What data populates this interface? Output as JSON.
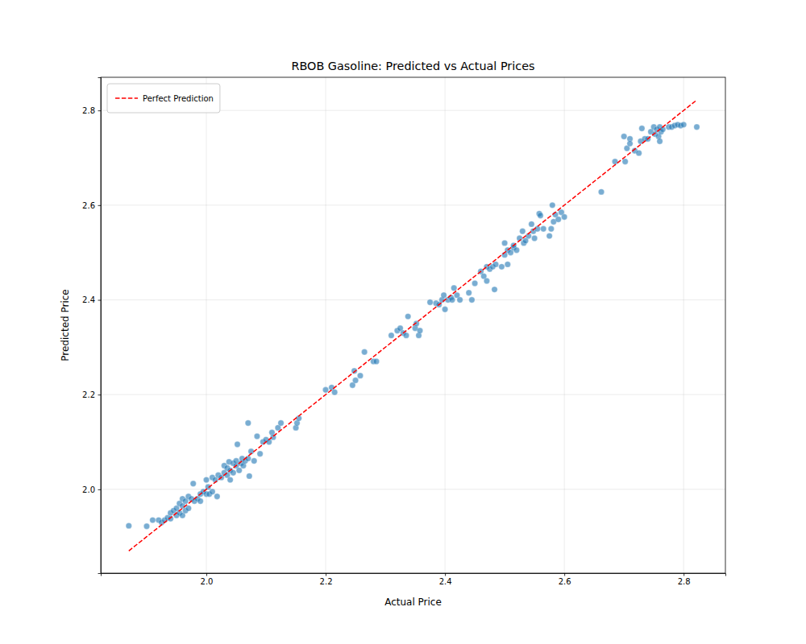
{
  "chart_data": {
    "type": "scatter",
    "title": "RBOB Gasoline: Predicted vs Actual Prices",
    "x_label": "Actual Price",
    "y_label": "Predicted Price",
    "xlim": [
      1.823,
      2.87
    ],
    "ylim": [
      1.823,
      2.87
    ],
    "xticks": [
      {
        "value": 2,
        "label": "2.0"
      },
      2.2,
      2.4,
      2.6,
      2.8
    ],
    "yticks": [
      {
        "value": 2,
        "label": "2.0"
      },
      2.2,
      2.4,
      2.6,
      2.8
    ],
    "grid": true,
    "legend": "upper left",
    "series": [
      {
        "type": "scatter",
        "color": "#1f77b4",
        "marker": "o",
        "x": [
          1.87,
          1.9,
          1.91,
          1.92,
          1.925,
          1.93,
          1.935,
          1.94,
          1.94,
          1.945,
          1.95,
          1.95,
          1.955,
          1.955,
          1.96,
          1.96,
          1.96,
          1.965,
          1.965,
          1.97,
          1.97,
          1.975,
          1.978,
          1.98,
          1.985,
          1.99,
          1.99,
          1.995,
          2.0,
          2.0,
          2.003,
          2.005,
          2.01,
          2.01,
          2.015,
          2.018,
          2.02,
          2.025,
          2.03,
          2.03,
          2.035,
          2.035,
          2.038,
          2.04,
          2.04,
          2.045,
          2.045,
          2.05,
          2.05,
          2.052,
          2.055,
          2.058,
          2.06,
          2.062,
          2.065,
          2.07,
          2.07,
          2.072,
          2.075,
          2.08,
          2.085,
          2.09,
          2.095,
          2.1,
          2.105,
          2.11,
          2.112,
          2.12,
          2.125,
          2.15,
          2.152,
          2.155,
          2.2,
          2.21,
          2.215,
          2.245,
          2.248,
          2.25,
          2.258,
          2.265,
          2.28,
          2.285,
          2.31,
          2.32,
          2.325,
          2.33,
          2.335,
          2.338,
          2.35,
          2.352,
          2.356,
          2.358,
          2.375,
          2.385,
          2.39,
          2.395,
          2.398,
          2.4,
          2.405,
          2.41,
          2.412,
          2.415,
          2.42,
          2.425,
          2.44,
          2.445,
          2.45,
          2.46,
          2.465,
          2.47,
          2.47,
          2.475,
          2.48,
          2.485,
          2.483,
          2.495,
          2.5,
          2.5,
          2.505,
          2.505,
          2.51,
          2.515,
          2.515,
          2.52,
          2.525,
          2.53,
          2.532,
          2.535,
          2.54,
          2.545,
          2.548,
          2.55,
          2.555,
          2.558,
          2.56,
          2.565,
          2.575,
          2.578,
          2.58,
          2.582,
          2.585,
          2.59,
          2.595,
          2.6,
          2.662,
          2.685,
          2.7,
          2.702,
          2.705,
          2.71,
          2.71,
          2.718,
          2.725,
          2.728,
          2.73,
          2.735,
          2.74,
          2.745,
          2.75,
          2.752,
          2.755,
          2.758,
          2.76,
          2.76,
          2.762,
          2.765,
          2.775,
          2.78,
          2.785,
          2.79,
          2.795,
          2.8,
          2.822
        ],
        "values": [
          1.923,
          1.922,
          1.935,
          1.935,
          1.93,
          1.935,
          1.94,
          1.95,
          1.938,
          1.955,
          1.945,
          1.96,
          1.97,
          1.95,
          1.98,
          1.965,
          1.945,
          1.955,
          1.975,
          1.985,
          1.96,
          1.98,
          2.012,
          1.975,
          1.98,
          1.99,
          1.975,
          1.995,
          2.02,
          1.99,
          2.005,
          1.99,
          2.025,
          1.995,
          2.02,
          1.985,
          2.03,
          2.025,
          2.05,
          2.035,
          2.045,
          2.03,
          2.058,
          2.02,
          2.04,
          2.055,
          2.035,
          2.05,
          2.06,
          2.095,
          2.04,
          2.055,
          2.065,
          2.05,
          2.06,
          2.14,
          2.065,
          2.028,
          2.08,
          2.06,
          2.112,
          2.075,
          2.1,
          2.105,
          2.1,
          2.12,
          2.11,
          2.13,
          2.14,
          2.13,
          2.14,
          2.15,
          2.21,
          2.215,
          2.205,
          2.22,
          2.25,
          2.23,
          2.24,
          2.29,
          2.27,
          2.27,
          2.325,
          2.335,
          2.34,
          2.33,
          2.325,
          2.365,
          2.34,
          2.35,
          2.325,
          2.335,
          2.395,
          2.393,
          2.39,
          2.4,
          2.41,
          2.38,
          2.4,
          2.405,
          2.4,
          2.425,
          2.41,
          2.4,
          2.415,
          2.4,
          2.435,
          2.46,
          2.45,
          2.47,
          2.44,
          2.465,
          2.47,
          2.475,
          2.422,
          2.47,
          2.495,
          2.52,
          2.475,
          2.505,
          2.5,
          2.51,
          2.515,
          2.505,
          2.53,
          2.545,
          2.52,
          2.525,
          2.535,
          2.56,
          2.545,
          2.53,
          2.55,
          2.582,
          2.578,
          2.55,
          2.535,
          2.55,
          2.6,
          2.565,
          2.58,
          2.57,
          2.585,
          2.575,
          2.628,
          2.692,
          2.745,
          2.692,
          2.72,
          2.74,
          2.73,
          2.715,
          2.71,
          2.735,
          2.762,
          2.74,
          2.74,
          2.755,
          2.765,
          2.75,
          2.76,
          2.745,
          2.765,
          2.735,
          2.755,
          2.76,
          2.765,
          2.765,
          2.768,
          2.77,
          2.768,
          2.77,
          2.765
        ]
      },
      {
        "type": "line",
        "name": "Perfect Prediction",
        "color": "#ff0000",
        "line_style": "dashed",
        "x": [
          1.87,
          2.822
        ],
        "values": [
          1.87,
          2.822
        ]
      }
    ]
  }
}
